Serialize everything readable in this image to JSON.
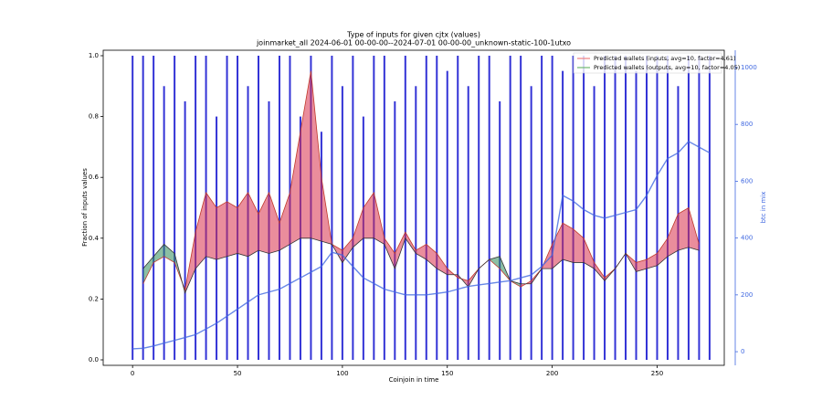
{
  "chart_data": {
    "type": "line",
    "title": "Type of inputs for given cjtx (values)",
    "subtitle": "joinmarket_all 2024-06-01 00-00-00--2024-07-01 00-00-00_unknown-static-100-1utxo",
    "x_label": "Coinjoin in time",
    "y_label": "Fraction of inputs values",
    "y2_label": "btc in mix",
    "xlim": [
      -14,
      282
    ],
    "xticks": [
      0,
      50,
      100,
      150,
      200,
      250
    ],
    "ylim": [
      -0.018,
      1.018
    ],
    "yticks": [
      {
        "value": 0,
        "label": "0.0"
      },
      0.2,
      0.4,
      0.6,
      0.8,
      {
        "value": 1,
        "label": "1.0"
      }
    ],
    "y2lim": [
      -48,
      1061
    ],
    "y2ticks": [
      0,
      200,
      400,
      600,
      800,
      1000
    ],
    "legend": "upper right",
    "x": [
      0,
      5,
      10,
      15,
      20,
      25,
      30,
      35,
      40,
      45,
      50,
      55,
      60,
      65,
      70,
      75,
      80,
      85,
      90,
      95,
      100,
      105,
      110,
      115,
      120,
      125,
      130,
      135,
      140,
      145,
      150,
      155,
      160,
      165,
      170,
      175,
      180,
      185,
      190,
      195,
      200,
      205,
      210,
      215,
      220,
      225,
      230,
      235,
      240,
      245,
      250,
      255,
      260,
      265,
      270,
      275
    ],
    "bars": {
      "color": "#0000cc",
      "values": [
        1,
        1,
        1,
        0.9,
        1,
        0.85,
        1,
        1,
        0.8,
        1,
        1,
        0.9,
        1,
        0.85,
        1,
        1,
        0.8,
        1,
        0.75,
        1,
        0.9,
        1,
        0.8,
        1,
        1,
        0.85,
        1,
        0.9,
        1,
        1,
        0.95,
        1,
        0.9,
        1,
        1,
        0.85,
        1,
        1,
        0.9,
        1,
        1,
        0.95,
        1,
        1,
        0.9,
        1,
        1,
        1,
        0.95,
        1,
        1,
        1,
        0.9,
        1,
        1,
        1
      ]
    },
    "series": [
      {
        "name": "Predicted wallets (inputs, avg=10, factor=4.61)",
        "color": "#f08080",
        "values": [
          null,
          0.25,
          0.32,
          0.34,
          0.32,
          0.23,
          0.42,
          0.55,
          0.5,
          0.52,
          0.5,
          0.55,
          0.48,
          0.55,
          0.45,
          0.55,
          0.75,
          0.95,
          0.6,
          0.38,
          0.36,
          0.4,
          0.5,
          0.55,
          0.4,
          0.35,
          0.42,
          0.36,
          0.38,
          0.35,
          0.3,
          0.27,
          0.26,
          0.3,
          0.33,
          0.3,
          0.26,
          0.24,
          0.26,
          0.3,
          0.38,
          0.45,
          0.43,
          0.4,
          0.32,
          0.27,
          0.3,
          0.35,
          0.32,
          0.33,
          0.35,
          0.4,
          0.48,
          0.5,
          0.38,
          null
        ]
      },
      {
        "name": "Predicted wallets (outputs, avg=10, factor=4.05)",
        "color": "#6fb86f",
        "values": [
          null,
          0.3,
          0.34,
          0.38,
          0.35,
          0.22,
          0.3,
          0.34,
          0.33,
          0.34,
          0.35,
          0.34,
          0.36,
          0.35,
          0.36,
          0.38,
          0.4,
          0.4,
          0.39,
          0.38,
          0.32,
          0.37,
          0.4,
          0.4,
          0.38,
          0.3,
          0.4,
          0.35,
          0.33,
          0.3,
          0.28,
          0.28,
          0.24,
          0.3,
          0.33,
          0.34,
          0.26,
          0.25,
          0.25,
          0.3,
          0.3,
          0.33,
          0.32,
          0.32,
          0.3,
          0.26,
          0.3,
          0.35,
          0.29,
          0.3,
          0.31,
          0.34,
          0.36,
          0.37,
          0.36,
          null
        ]
      },
      {
        "color": "#4169e1",
        "axis": "y2",
        "values": [
          10,
          12,
          20,
          30,
          40,
          50,
          60,
          80,
          100,
          125,
          150,
          175,
          200,
          210,
          220,
          240,
          260,
          280,
          300,
          350,
          340,
          300,
          260,
          240,
          220,
          210,
          200,
          200,
          200,
          205,
          210,
          220,
          230,
          235,
          240,
          245,
          250,
          260,
          270,
          300,
          340,
          550,
          530,
          500,
          480,
          470,
          480,
          490,
          500,
          550,
          620,
          680,
          700,
          740,
          720,
          700
        ]
      }
    ]
  }
}
